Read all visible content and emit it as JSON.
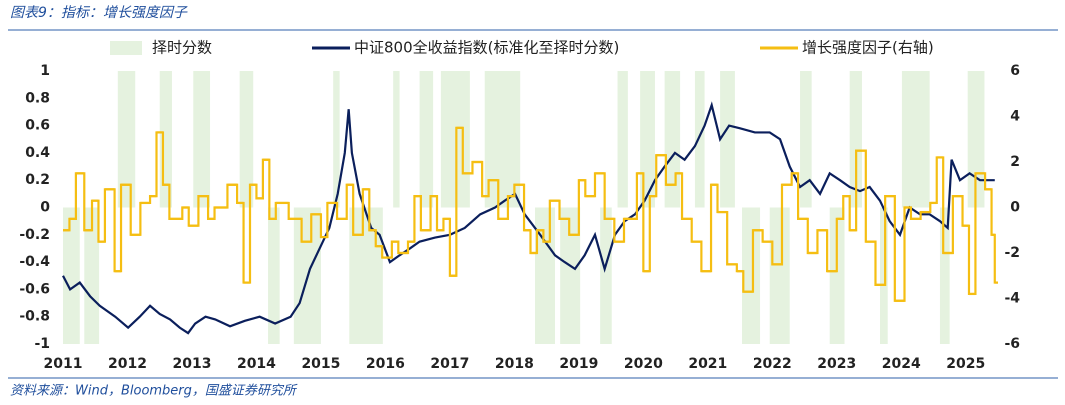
{
  "chart_data": {
    "type": "combo",
    "title": "图表9：指标：增长强度因子",
    "source": "资料来源：Wind，Bloomberg，国盛证券研究所",
    "xlim": [
      2011,
      2025.5
    ],
    "xticks": [
      2011,
      2012,
      2013,
      2014,
      2015,
      2016,
      2017,
      2018,
      2019,
      2020,
      2021,
      2022,
      2023,
      2024,
      2025
    ],
    "ylim": [
      -1,
      1
    ],
    "yticks": [
      1,
      0.8,
      0.6,
      0.4,
      0.2,
      0,
      -0.2,
      -0.4,
      -0.6,
      -0.8,
      -1
    ],
    "y2lim": [
      -6,
      6
    ],
    "y2ticks": [
      6,
      4,
      2,
      0,
      -2,
      -4,
      -6
    ],
    "grid": false,
    "legend": "top",
    "series": [
      {
        "name": "择时分数",
        "type": "bar",
        "color": "#e5f2df",
        "bins": [
          2011.0,
          2011.26,
          2011.33,
          2011.56,
          2011.85,
          2012.12,
          2012.5,
          2012.69,
          2013.02,
          2013.28,
          2013.74,
          2013.95,
          2014.18,
          2014.36,
          2014.58,
          2015.0,
          2015.19,
          2015.29,
          2015.44,
          2015.96,
          2016.12,
          2016.22,
          2016.53,
          2016.74,
          2016.86,
          2017.31,
          2017.54,
          2018.09,
          2018.32,
          2018.63,
          2018.71,
          2019.02,
          2019.33,
          2019.51,
          2019.6,
          2019.76,
          2019.95,
          2020.18,
          2020.33,
          2020.57,
          2020.8,
          2020.95,
          2021.19,
          2021.42,
          2021.53,
          2021.81,
          2021.96,
          2022.27,
          2022.43,
          2022.61,
          2022.89,
          2023.12,
          2023.2,
          2023.39,
          2023.67,
          2023.79,
          2024.01,
          2024.44,
          2024.6,
          2024.75,
          2025.03,
          2025.29,
          2025.4
        ],
        "values": [
          -1,
          0,
          -1,
          0,
          1,
          0,
          1,
          0,
          1,
          0,
          1,
          0,
          -1,
          0,
          -1,
          0,
          1,
          0,
          -1,
          0,
          1,
          0,
          1,
          0,
          1,
          0,
          1,
          0,
          -1,
          0,
          -1,
          0,
          -1,
          0,
          1,
          0,
          1,
          0,
          1,
          0,
          1,
          0,
          1,
          0,
          -1,
          0,
          -1,
          0,
          1,
          0,
          -1,
          0,
          1,
          0,
          -1,
          0,
          1,
          0,
          -1,
          0,
          1,
          0
        ]
      },
      {
        "name": "中证800全收益指数(标准化至择时分数)",
        "type": "line",
        "color": "#0b1f5c",
        "x": [
          2011.0,
          2011.11,
          2011.26,
          2011.42,
          2011.57,
          2011.81,
          2012.01,
          2012.19,
          2012.35,
          2012.5,
          2012.66,
          2012.81,
          2012.94,
          2013.05,
          2013.21,
          2013.36,
          2013.59,
          2013.82,
          2014.05,
          2014.29,
          2014.53,
          2014.67,
          2014.83,
          2014.98,
          2015.13,
          2015.26,
          2015.37,
          2015.43,
          2015.48,
          2015.6,
          2015.78,
          2015.91,
          2016.07,
          2016.22,
          2016.38,
          2016.53,
          2016.77,
          2017.0,
          2017.23,
          2017.47,
          2017.7,
          2017.85,
          2018.01,
          2018.16,
          2018.4,
          2018.63,
          2018.78,
          2018.94,
          2019.09,
          2019.25,
          2019.4,
          2019.56,
          2019.71,
          2019.87,
          2020.02,
          2020.18,
          2020.33,
          2020.49,
          2020.64,
          2020.8,
          2020.95,
          2021.06,
          2021.19,
          2021.33,
          2021.5,
          2021.73,
          2021.96,
          2022.12,
          2022.27,
          2022.43,
          2022.58,
          2022.74,
          2022.89,
          2023.05,
          2023.2,
          2023.36,
          2023.51,
          2023.67,
          2023.82,
          2023.98,
          2024.13,
          2024.29,
          2024.44,
          2024.6,
          2024.72,
          2024.78,
          2024.91,
          2025.06,
          2025.22,
          2025.37,
          2025.45
        ],
        "values": [
          -0.5,
          -0.6,
          -0.55,
          -0.65,
          -0.72,
          -0.8,
          -0.88,
          -0.8,
          -0.72,
          -0.78,
          -0.82,
          -0.88,
          -0.92,
          -0.85,
          -0.8,
          -0.82,
          -0.87,
          -0.83,
          -0.8,
          -0.85,
          -0.8,
          -0.7,
          -0.45,
          -0.3,
          -0.15,
          0.1,
          0.4,
          0.72,
          0.4,
          0.1,
          -0.15,
          -0.2,
          -0.4,
          -0.35,
          -0.3,
          -0.25,
          -0.22,
          -0.2,
          -0.15,
          -0.05,
          0.0,
          0.05,
          0.1,
          -0.05,
          -0.2,
          -0.35,
          -0.4,
          -0.45,
          -0.35,
          -0.2,
          -0.45,
          -0.2,
          -0.1,
          -0.05,
          0.05,
          0.2,
          0.3,
          0.4,
          0.35,
          0.45,
          0.6,
          0.75,
          0.5,
          0.6,
          0.58,
          0.55,
          0.55,
          0.5,
          0.3,
          0.15,
          0.2,
          0.1,
          0.25,
          0.2,
          0.15,
          0.12,
          0.15,
          0.05,
          -0.1,
          -0.2,
          0.0,
          -0.05,
          -0.05,
          -0.1,
          -0.15,
          0.35,
          0.2,
          0.25,
          0.2,
          0.2,
          0.2
        ]
      },
      {
        "name": "增长强度因子(右轴)",
        "type": "step",
        "axis": "y2",
        "color": "#f5be12",
        "x": [
          2011.0,
          2011.1,
          2011.2,
          2011.33,
          2011.45,
          2011.55,
          2011.65,
          2011.8,
          2011.9,
          2012.05,
          2012.2,
          2012.35,
          2012.45,
          2012.55,
          2012.65,
          2012.85,
          2012.95,
          2013.1,
          2013.25,
          2013.35,
          2013.55,
          2013.7,
          2013.8,
          2013.9,
          2014.0,
          2014.1,
          2014.2,
          2014.3,
          2014.5,
          2014.7,
          2014.85,
          2015.0,
          2015.1,
          2015.25,
          2015.4,
          2015.5,
          2015.65,
          2015.75,
          2015.85,
          2015.95,
          2016.1,
          2016.2,
          2016.35,
          2016.45,
          2016.55,
          2016.7,
          2016.8,
          2016.9,
          2017.0,
          2017.1,
          2017.2,
          2017.35,
          2017.5,
          2017.6,
          2017.75,
          2017.9,
          2018.0,
          2018.15,
          2018.25,
          2018.35,
          2018.45,
          2018.55,
          2018.7,
          2018.85,
          2019.0,
          2019.1,
          2019.25,
          2019.4,
          2019.55,
          2019.7,
          2019.9,
          2020.0,
          2020.1,
          2020.2,
          2020.35,
          2020.5,
          2020.6,
          2020.75,
          2020.9,
          2021.05,
          2021.15,
          2021.3,
          2021.45,
          2021.55,
          2021.7,
          2021.85,
          2022.0,
          2022.15,
          2022.3,
          2022.4,
          2022.55,
          2022.7,
          2022.85,
          2023.0,
          2023.1,
          2023.2,
          2023.3,
          2023.45,
          2023.6,
          2023.75,
          2023.9,
          2024.05,
          2024.15,
          2024.3,
          2024.45,
          2024.55,
          2024.65,
          2024.8,
          2024.95,
          2025.05,
          2025.15,
          2025.3,
          2025.4,
          2025.45
        ],
        "values": [
          -1,
          -0.5,
          1.5,
          -1,
          0.3,
          -1.5,
          0.8,
          -2.8,
          1,
          -1.2,
          0.2,
          0.5,
          3.3,
          1,
          -0.5,
          0,
          -0.8,
          0.5,
          -0.5,
          0,
          1,
          0.2,
          -3.3,
          1,
          0.4,
          2.1,
          -0.5,
          0.2,
          -0.5,
          -1.5,
          -0.3,
          -1.3,
          0.2,
          -0.5,
          1,
          -1.2,
          0.8,
          -1,
          -1.7,
          -2.2,
          -1.5,
          -2,
          -1.5,
          0.5,
          -1,
          0.5,
          -1,
          -0.5,
          -3,
          3.5,
          1.5,
          2,
          0.5,
          1.2,
          -0.5,
          0.5,
          1,
          -1,
          -2,
          -1,
          -1.5,
          0.3,
          -0.5,
          -1.2,
          1.2,
          0.5,
          1.5,
          -0.5,
          -1.5,
          -0.5,
          1.5,
          -2.8,
          0.5,
          2.3,
          1,
          1.5,
          -0.5,
          -1.5,
          -2.8,
          1,
          -0.2,
          -2.5,
          -2.8,
          -3.7,
          -1,
          -1.5,
          -2.5,
          1,
          1.5,
          -0.5,
          -2,
          -1,
          -2.8,
          -0.5,
          0.5,
          -1,
          2.5,
          -1.5,
          -3.4,
          0.5,
          -4.1,
          0,
          -0.5,
          -0.2,
          0.2,
          2.2,
          -2,
          0.5,
          -0.8,
          -3.8,
          1.5,
          0.8,
          -1.2,
          -3.3
        ]
      }
    ]
  }
}
